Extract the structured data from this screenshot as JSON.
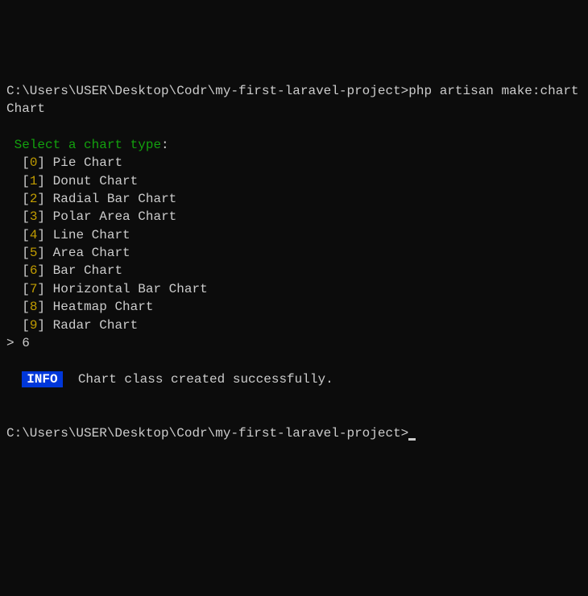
{
  "prompt1": {
    "path": "C:\\Users\\USER\\Desktop\\Codr\\my-first-laravel-project>",
    "command": "php artisan make:chart Chart"
  },
  "question": "Select a chart type",
  "question_suffix": ":",
  "options": [
    {
      "index": "0",
      "label": "Pie Chart"
    },
    {
      "index": "1",
      "label": "Donut Chart"
    },
    {
      "index": "2",
      "label": "Radial Bar Chart"
    },
    {
      "index": "3",
      "label": "Polar Area Chart"
    },
    {
      "index": "4",
      "label": "Line Chart"
    },
    {
      "index": "5",
      "label": "Area Chart"
    },
    {
      "index": "6",
      "label": "Bar Chart"
    },
    {
      "index": "7",
      "label": "Horizontal Bar Chart"
    },
    {
      "index": "8",
      "label": "Heatmap Chart"
    },
    {
      "index": "9",
      "label": "Radar Chart"
    }
  ],
  "selection_prefix": ">",
  "selection_value": "6",
  "info_badge": "INFO",
  "success_message": "Chart class created successfully.",
  "prompt2": {
    "path": "C:\\Users\\USER\\Desktop\\Codr\\my-first-laravel-project>"
  },
  "colors": {
    "background": "#0c0c0c",
    "text": "#cccccc",
    "question": "#13a10e",
    "number": "#c19c00",
    "info_bg": "#0037da",
    "info_fg": "#ffffff"
  }
}
